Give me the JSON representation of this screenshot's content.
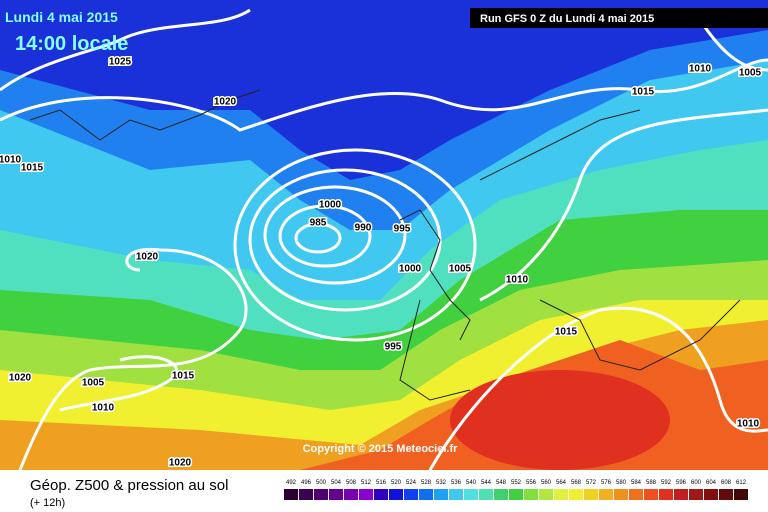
{
  "header": {
    "date": "Lundi 4 mai 2015",
    "time": "14:00 locale",
    "run": "Run GFS 0 Z du Lundi 4 mai 2015"
  },
  "map": {
    "copyright": "Copyright © 2015 Meteociel.fr",
    "isobar_labels": [
      "1025",
      "1020",
      "1010",
      "1015",
      "1020",
      "985",
      "990",
      "995",
      "1000",
      "1005",
      "1010",
      "1015",
      "1010",
      "1005",
      "1015",
      "995",
      "1020",
      "1005",
      "1015",
      "1010",
      "1020",
      "1010",
      "1000"
    ]
  },
  "footer": {
    "title": "Géop. Z500 & pression au sol",
    "lead": "(+ 12h)",
    "scale": [
      492,
      496,
      500,
      504,
      508,
      512,
      516,
      520,
      524,
      528,
      532,
      536,
      540,
      544,
      548,
      552,
      556,
      560,
      564,
      568,
      572,
      576,
      580,
      584,
      588,
      592,
      596,
      600,
      604,
      608,
      612
    ],
    "colors": [
      "#2a0030",
      "#3c0050",
      "#500070",
      "#640090",
      "#7800b0",
      "#8c00d0",
      "#3000c0",
      "#1010e0",
      "#1040f0",
      "#1070f0",
      "#20a0f0",
      "#40c8f0",
      "#50e0e0",
      "#50e0b0",
      "#40d070",
      "#40d040",
      "#80e040",
      "#b0e840",
      "#e0f040",
      "#f0f030",
      "#f0d020",
      "#f0b020",
      "#f09020",
      "#f07020",
      "#f05020",
      "#e03020",
      "#c02020",
      "#a01818",
      "#801010",
      "#600c0c",
      "#400808"
    ]
  }
}
